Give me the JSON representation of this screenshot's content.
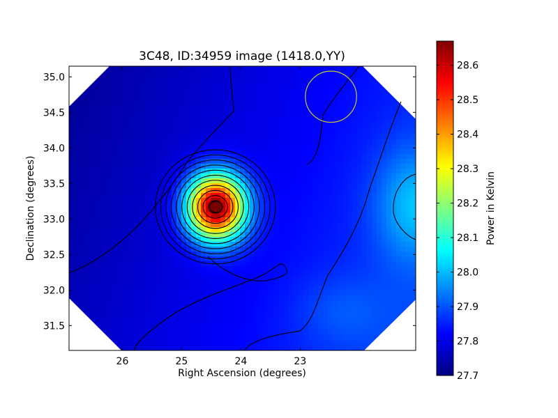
{
  "chart_data": {
    "type": "heatmap",
    "title": "3C48, ID:34959 image (1418.0,YY)",
    "xlabel": "Right Ascension (degrees)",
    "ylabel": "Declination (degrees)",
    "colorbar_label": "Power in Kelvin",
    "colormap": "jet",
    "xlim": [
      26.9,
      21.05
    ],
    "ylim": [
      31.15,
      35.15
    ],
    "x_inverted": true,
    "xticks": [
      26,
      25,
      24,
      23
    ],
    "xtick_labels": [
      "26",
      "25",
      "24",
      "23"
    ],
    "yticks": [
      31.5,
      32.0,
      32.5,
      33.0,
      33.5,
      34.0,
      34.5,
      35.0
    ],
    "ytick_labels": [
      "31.5",
      "32.0",
      "32.5",
      "33.0",
      "33.5",
      "34.0",
      "34.5",
      "35.0"
    ],
    "colorbar_range": [
      27.7,
      28.67
    ],
    "colorbar_ticks": [
      27.7,
      27.8,
      27.9,
      28.0,
      28.1,
      28.2,
      28.3,
      28.4,
      28.5,
      28.6
    ],
    "colorbar_tick_labels": [
      "27.7",
      "27.8",
      "27.9",
      "28.0",
      "28.1",
      "28.2",
      "28.3",
      "28.4",
      "28.5",
      "28.6"
    ],
    "peak_source": {
      "ra": 24.42,
      "dec": 33.17,
      "value": 28.66
    },
    "secondary_source": {
      "ra": 21.1,
      "dec": 33.2,
      "value": 28.0
    },
    "beam_circle": {
      "ra": 22.48,
      "dec": 34.72,
      "radius_deg": 0.36,
      "color": "#c8c830"
    },
    "contour_color": "#000000",
    "grid": false
  }
}
